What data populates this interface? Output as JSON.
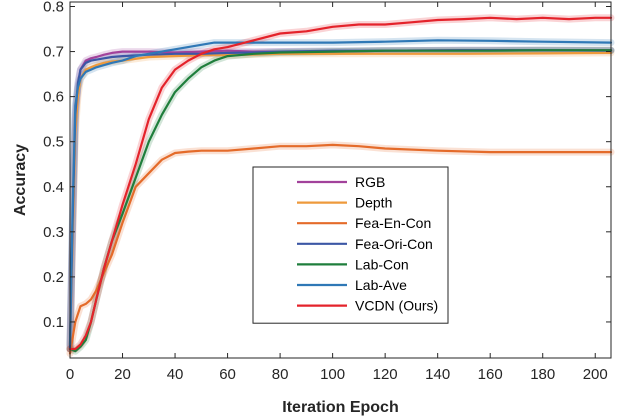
{
  "chart_data": {
    "type": "line",
    "title": "",
    "xlabel": "Iteration Epoch",
    "ylabel": "Accuracy",
    "xlim": [
      0,
      206
    ],
    "ylim": [
      0.02,
      0.81
    ],
    "xticks": [
      0,
      20,
      40,
      60,
      80,
      100,
      120,
      140,
      160,
      180,
      200
    ],
    "yticks": [
      0.1,
      0.2,
      0.3,
      0.4,
      0.5,
      0.6,
      0.7,
      0.8
    ],
    "grid": false,
    "legend_position": "bottom-center",
    "series": [
      {
        "name": "RGB",
        "color": "#A2429B",
        "x": [
          0,
          1,
          2,
          3,
          4,
          6,
          8,
          10,
          13,
          16,
          20,
          30,
          40,
          50,
          60,
          70,
          80,
          100,
          120,
          150,
          180,
          206
        ],
        "y": [
          0.04,
          0.3,
          0.55,
          0.62,
          0.66,
          0.68,
          0.685,
          0.688,
          0.693,
          0.697,
          0.7,
          0.7,
          0.698,
          0.7,
          0.702,
          0.7,
          0.7,
          0.7,
          0.702,
          0.703,
          0.703,
          0.703
        ]
      },
      {
        "name": "Depth",
        "color": "#EE9A3C",
        "x": [
          0,
          1,
          2,
          3,
          4,
          6,
          8,
          10,
          13,
          16,
          20,
          30,
          40,
          50,
          60,
          80,
          100,
          120,
          150,
          180,
          206
        ],
        "y": [
          0.04,
          0.28,
          0.52,
          0.6,
          0.64,
          0.66,
          0.665,
          0.67,
          0.675,
          0.678,
          0.68,
          0.688,
          0.69,
          0.692,
          0.692,
          0.695,
          0.695,
          0.695,
          0.695,
          0.696,
          0.697
        ]
      },
      {
        "name": "Fea-En-Con",
        "color": "#E46B2A",
        "x": [
          0,
          2,
          4,
          6,
          8,
          10,
          13,
          16,
          20,
          25,
          30,
          35,
          40,
          45,
          50,
          60,
          70,
          80,
          90,
          100,
          110,
          120,
          140,
          160,
          180,
          206
        ],
        "y": [
          0.03,
          0.1,
          0.135,
          0.14,
          0.15,
          0.17,
          0.21,
          0.25,
          0.32,
          0.4,
          0.43,
          0.46,
          0.475,
          0.478,
          0.48,
          0.48,
          0.485,
          0.49,
          0.49,
          0.493,
          0.49,
          0.485,
          0.48,
          0.477,
          0.477,
          0.477
        ]
      },
      {
        "name": "Fea-Ori-Con",
        "color": "#3C57A5",
        "x": [
          0,
          1,
          2,
          3,
          4,
          6,
          8,
          10,
          13,
          16,
          20,
          30,
          40,
          50,
          60,
          70,
          80,
          100,
          120,
          150,
          180,
          206
        ],
        "y": [
          0.04,
          0.32,
          0.56,
          0.63,
          0.66,
          0.675,
          0.68,
          0.682,
          0.685,
          0.688,
          0.69,
          0.693,
          0.695,
          0.695,
          0.697,
          0.698,
          0.7,
          0.702,
          0.702,
          0.703,
          0.703,
          0.702
        ]
      },
      {
        "name": "Lab-Con",
        "color": "#1F7E3C",
        "x": [
          0,
          2,
          4,
          6,
          8,
          10,
          13,
          16,
          20,
          25,
          30,
          35,
          40,
          45,
          50,
          55,
          60,
          70,
          80,
          100,
          120,
          140,
          160,
          180,
          206
        ],
        "y": [
          0.04,
          0.035,
          0.045,
          0.06,
          0.1,
          0.15,
          0.22,
          0.28,
          0.34,
          0.42,
          0.5,
          0.56,
          0.61,
          0.64,
          0.665,
          0.68,
          0.69,
          0.695,
          0.698,
          0.7,
          0.702,
          0.702,
          0.702,
          0.703,
          0.703
        ]
      },
      {
        "name": "Lab-Ave",
        "color": "#2F78B6",
        "x": [
          0,
          1,
          2,
          3,
          4,
          6,
          8,
          10,
          13,
          16,
          20,
          25,
          30,
          35,
          40,
          50,
          55,
          60,
          70,
          80,
          90,
          100,
          120,
          140,
          160,
          180,
          206
        ],
        "y": [
          0.05,
          0.35,
          0.58,
          0.62,
          0.64,
          0.655,
          0.66,
          0.665,
          0.67,
          0.675,
          0.68,
          0.69,
          0.695,
          0.7,
          0.705,
          0.715,
          0.72,
          0.72,
          0.72,
          0.72,
          0.72,
          0.72,
          0.722,
          0.725,
          0.724,
          0.722,
          0.72
        ]
      },
      {
        "name": "VCDN (Ours)",
        "color": "#E4232B",
        "x": [
          0,
          2,
          4,
          6,
          8,
          10,
          13,
          16,
          20,
          25,
          30,
          35,
          40,
          45,
          50,
          55,
          60,
          70,
          80,
          90,
          100,
          110,
          120,
          130,
          140,
          150,
          160,
          170,
          180,
          190,
          200,
          206
        ],
        "y": [
          0.04,
          0.04,
          0.05,
          0.07,
          0.1,
          0.15,
          0.22,
          0.28,
          0.36,
          0.45,
          0.55,
          0.62,
          0.66,
          0.68,
          0.695,
          0.705,
          0.71,
          0.725,
          0.74,
          0.745,
          0.755,
          0.76,
          0.76,
          0.765,
          0.77,
          0.772,
          0.775,
          0.772,
          0.775,
          0.772,
          0.775,
          0.775
        ]
      }
    ]
  }
}
